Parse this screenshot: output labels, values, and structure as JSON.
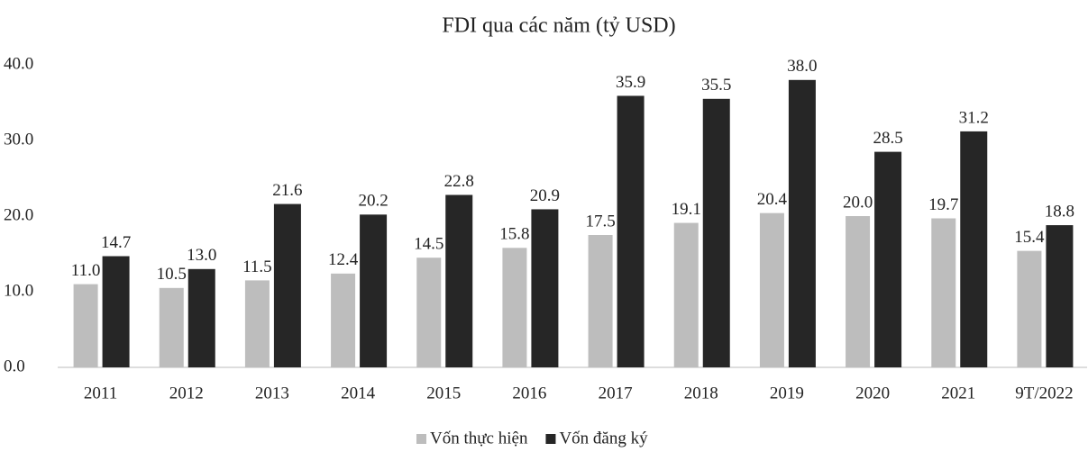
{
  "chart_data": {
    "type": "bar",
    "title": "FDI qua các năm (tỷ USD)",
    "categories": [
      "2011",
      "2012",
      "2013",
      "2014",
      "2015",
      "2016",
      "2017",
      "2018",
      "2019",
      "2020",
      "2021",
      "9T/2022"
    ],
    "series": [
      {
        "name": "Vốn thực hiện",
        "color": "#bdbdbd",
        "values": [
          11.0,
          10.5,
          11.5,
          12.4,
          14.5,
          15.8,
          17.5,
          19.1,
          20.4,
          20.0,
          19.7,
          15.4
        ],
        "value_labels": [
          "11.0",
          "10.5",
          "11.5",
          "12.4",
          "14.5",
          "15.8",
          "17.5",
          "19.1",
          "20.4",
          "20.0",
          "19.7",
          "15.4"
        ]
      },
      {
        "name": "Vốn đăng ký",
        "color": "#262626",
        "values": [
          14.7,
          13.0,
          21.6,
          20.2,
          22.8,
          20.9,
          35.9,
          35.5,
          38.0,
          28.5,
          31.2,
          18.8
        ],
        "value_labels": [
          "14.7",
          "13.0",
          "21.6",
          "20.2",
          "22.8",
          "20.9",
          "35.9",
          "35.5",
          "38.0",
          "28.5",
          "31.2",
          "18.8"
        ]
      }
    ],
    "ylim": [
      0,
      40
    ],
    "yticks": [
      {
        "value": 0,
        "label": "0.0"
      },
      {
        "value": 10,
        "label": "10.0"
      },
      {
        "value": 20,
        "label": "20.0"
      },
      {
        "value": 30,
        "label": "30.0"
      },
      {
        "value": 40,
        "label": "40.0"
      }
    ],
    "grid": false,
    "legend": "bottom"
  }
}
